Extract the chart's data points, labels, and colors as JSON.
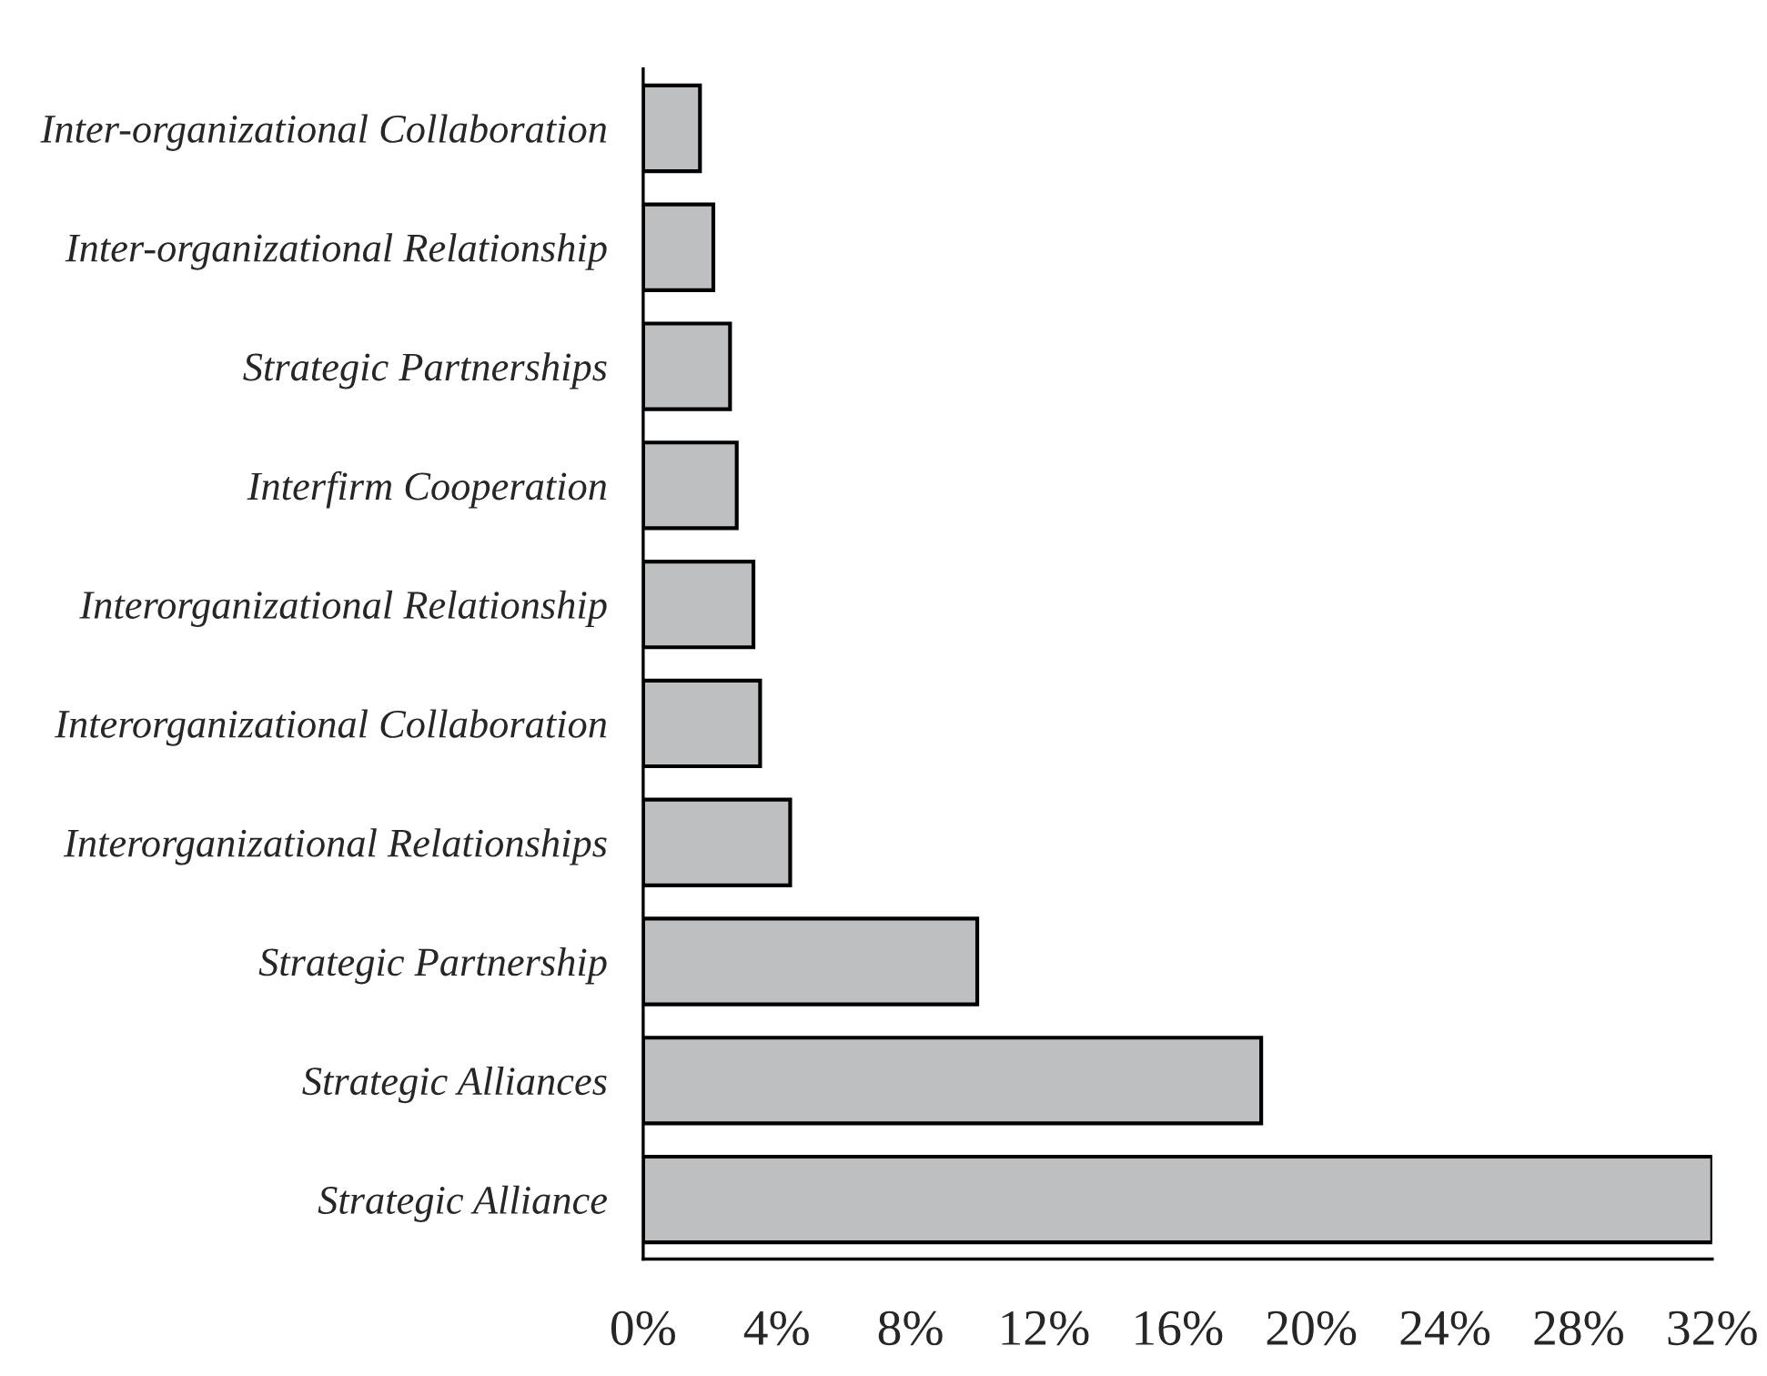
{
  "chart_data": {
    "type": "bar",
    "orientation": "horizontal",
    "categories": [
      "Inter-organizational Collaboration",
      "Inter-organizational Relationship",
      "Strategic Partnerships",
      "Interfirm Cooperation",
      "Interorganizational Relationship",
      "Interorganizational Collaboration",
      "Interorganizational Relationships",
      "Strategic Partnership",
      "Strategic Alliances",
      "Strategic Alliance"
    ],
    "values": [
      1.7,
      2.1,
      2.6,
      2.8,
      3.3,
      3.5,
      4.4,
      10.0,
      18.5,
      32.0
    ],
    "color": "#bebfc1",
    "xlim": [
      0,
      32
    ],
    "xticks": [
      {
        "value": 0,
        "label": "0%"
      },
      {
        "value": 4,
        "label": "4%"
      },
      {
        "value": 8,
        "label": "8%"
      },
      {
        "value": 12,
        "label": "12%"
      },
      {
        "value": 16,
        "label": "16%"
      },
      {
        "value": 20,
        "label": "20%"
      },
      {
        "value": 24,
        "label": "24%"
      },
      {
        "value": 28,
        "label": "28%"
      },
      {
        "value": 32,
        "label": "32%"
      }
    ],
    "grid": false,
    "legend": false
  }
}
